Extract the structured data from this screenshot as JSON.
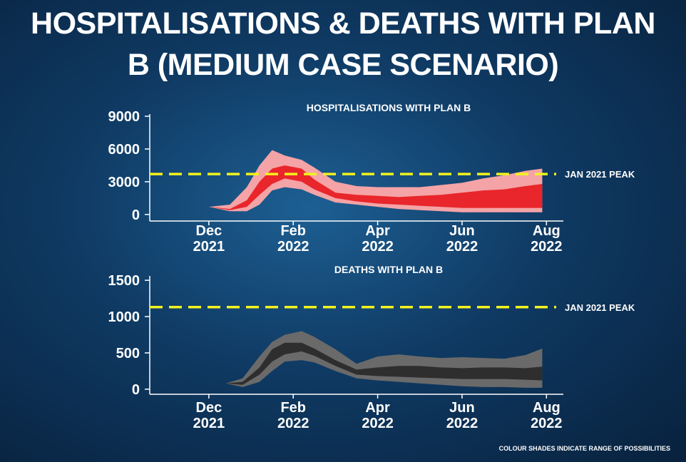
{
  "title": "HOSPITALISATIONS & DEATHS WITH PLAN B (MEDIUM CASE SCENARIO)",
  "footnote": "COLOUR SHADES INDICATE RANGE OF POSSIBILITIES",
  "chart_data": [
    {
      "type": "band",
      "title": "HOSPITALISATIONS WITH PLAN B",
      "x": [
        0,
        0.5,
        0.9,
        1.2,
        1.5,
        1.8,
        2.2,
        2.5,
        3.0,
        3.5,
        4.0,
        4.5,
        5.0,
        5.5,
        6.0,
        6.5,
        7.0,
        7.5,
        7.9
      ],
      "bands": [
        {
          "color": "#f4a3a6",
          "lower": [
            700,
            300,
            300,
            900,
            2200,
            2500,
            2300,
            1800,
            1100,
            900,
            700,
            500,
            400,
            300,
            200,
            200,
            200,
            200,
            200
          ],
          "upper": [
            700,
            900,
            2500,
            4500,
            5900,
            5400,
            5000,
            4300,
            3000,
            2600,
            2500,
            2500,
            2500,
            2700,
            2900,
            3300,
            3600,
            4000,
            4200
          ]
        },
        {
          "color": "#e8262b",
          "lower": [
            700,
            400,
            700,
            1800,
            2800,
            3300,
            3000,
            2300,
            1500,
            1200,
            1000,
            900,
            800,
            700,
            600,
            600,
            600,
            600,
            600
          ],
          "upper": [
            700,
            500,
            1300,
            3000,
            4200,
            4500,
            4200,
            3200,
            2000,
            1800,
            1700,
            1600,
            1700,
            1800,
            2000,
            2200,
            2300,
            2600,
            2800
          ]
        }
      ],
      "reference_line": {
        "value": 3700,
        "label": "JAN 2021 PEAK",
        "color": "#f2f21e"
      },
      "xlim": [
        -1.4,
        8.4
      ],
      "xticks": [
        {
          "value": 0,
          "label": "Dec 2021"
        },
        {
          "value": 2,
          "label": "Feb 2022"
        },
        {
          "value": 4,
          "label": "Apr 2022"
        },
        {
          "value": 6,
          "label": "Jun 2022"
        },
        {
          "value": 8,
          "label": "Aug 2022"
        }
      ],
      "ylim": [
        -600,
        9200
      ],
      "yticks": [
        0,
        3000,
        6000,
        9000
      ]
    },
    {
      "type": "band",
      "title": "DEATHS WITH PLAN B",
      "x": [
        0.4,
        0.8,
        1.2,
        1.5,
        1.8,
        2.2,
        2.5,
        3.0,
        3.5,
        4.0,
        4.5,
        5.0,
        5.5,
        6.0,
        6.5,
        7.0,
        7.5,
        7.9
      ],
      "bands": [
        {
          "color": "#6a6a6a",
          "lower": [
            80,
            30,
            100,
            250,
            380,
            400,
            370,
            250,
            150,
            120,
            100,
            80,
            60,
            40,
            30,
            30,
            20,
            20
          ],
          "upper": [
            80,
            150,
            450,
            650,
            750,
            800,
            720,
            550,
            350,
            450,
            480,
            450,
            430,
            440,
            430,
            420,
            470,
            560
          ]
        },
        {
          "color": "#2e2e2e",
          "lower": [
            80,
            60,
            200,
            380,
            480,
            520,
            460,
            320,
            200,
            180,
            170,
            160,
            150,
            140,
            140,
            140,
            130,
            120
          ],
          "upper": [
            80,
            100,
            300,
            550,
            640,
            640,
            560,
            400,
            270,
            300,
            320,
            320,
            300,
            290,
            300,
            300,
            290,
            310
          ]
        }
      ],
      "reference_line": {
        "value": 1130,
        "label": "JAN 2021 PEAK",
        "color": "#f2f21e"
      },
      "xlim": [
        -1.4,
        8.4
      ],
      "xticks": [
        {
          "value": 0,
          "label": "Dec 2021"
        },
        {
          "value": 2,
          "label": "Feb 2022"
        },
        {
          "value": 4,
          "label": "Apr 2022"
        },
        {
          "value": 6,
          "label": "Jun 2022"
        },
        {
          "value": 8,
          "label": "Aug 2022"
        }
      ],
      "ylim": [
        -70,
        1560
      ],
      "yticks": [
        0,
        500,
        1000,
        1500
      ]
    }
  ]
}
